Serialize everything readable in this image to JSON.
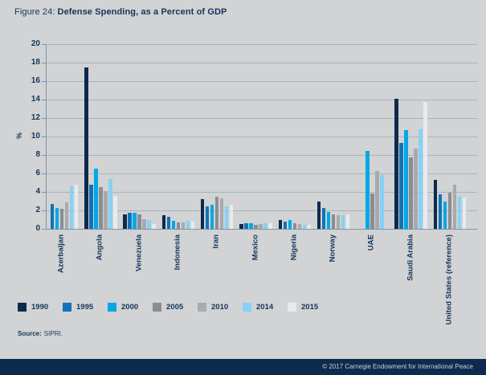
{
  "figure": {
    "title_prefix": "Figure 24:",
    "title_bold": "Defense Spending, as a Percent of GDP"
  },
  "chart_data": {
    "type": "bar",
    "title": "Figure 24: Defense Spending, as a Percent of GDP",
    "xlabel": "",
    "ylabel": "%",
    "ylim": [
      0,
      20
    ],
    "ytick_step": 2,
    "yticks": [
      0,
      2,
      4,
      6,
      8,
      10,
      12,
      14,
      16,
      18,
      20
    ],
    "grid": true,
    "legend_position": "bottom",
    "categories": [
      "Azerbaijan",
      "Angola",
      "Venezuela",
      "Indonesia",
      "Iran",
      "Mexico",
      "Nigeria",
      "Norway",
      "UAE",
      "Saudi Arabia",
      "United States (reference)"
    ],
    "series": [
      {
        "name": "1990",
        "color": "#0d2a4c",
        "values": [
          null,
          17.5,
          1.6,
          1.5,
          3.2,
          0.55,
          1.0,
          2.95,
          null,
          14.1,
          5.3
        ]
      },
      {
        "name": "1995",
        "color": "#1074b8",
        "values": [
          2.7,
          4.8,
          1.75,
          1.3,
          2.45,
          0.65,
          0.8,
          2.3,
          null,
          9.3,
          3.75
        ]
      },
      {
        "name": "2000",
        "color": "#00a8e6",
        "values": [
          2.3,
          6.5,
          1.75,
          0.9,
          2.6,
          0.65,
          0.95,
          1.8,
          8.4,
          10.7,
          3.0
        ]
      },
      {
        "name": "2005",
        "color": "#8b8d90",
        "values": [
          2.2,
          4.5,
          1.55,
          0.7,
          3.5,
          0.4,
          0.65,
          1.55,
          3.8,
          7.75,
          3.9
        ]
      },
      {
        "name": "2010",
        "color": "#a8aaad",
        "values": [
          2.9,
          4.1,
          1.05,
          0.7,
          3.3,
          0.55,
          0.55,
          1.5,
          6.3,
          8.7,
          4.8
        ]
      },
      {
        "name": "2014",
        "color": "#85d2f4",
        "values": [
          4.6,
          5.35,
          0.95,
          0.9,
          2.45,
          0.65,
          0.4,
          1.45,
          5.8,
          10.8,
          3.5
        ]
      },
      {
        "name": "2015",
        "color": "#e9eaeb",
        "values": [
          4.8,
          3.6,
          0.5,
          0.8,
          2.6,
          0.65,
          0.45,
          1.55,
          null,
          13.7,
          3.4
        ]
      }
    ]
  },
  "source": {
    "label": "Source:",
    "text": "SIPRI."
  },
  "footer": {
    "copyright": "© 2017 Carnegie Endowment for International Peace"
  },
  "colors": {
    "background": "#d1d3d4",
    "navy_text": "#16355a",
    "gridline": "#a9b3c0",
    "axis": "#8294a8",
    "footer_bar": "#0d2b4d",
    "footer_text": "#c7d1da"
  }
}
